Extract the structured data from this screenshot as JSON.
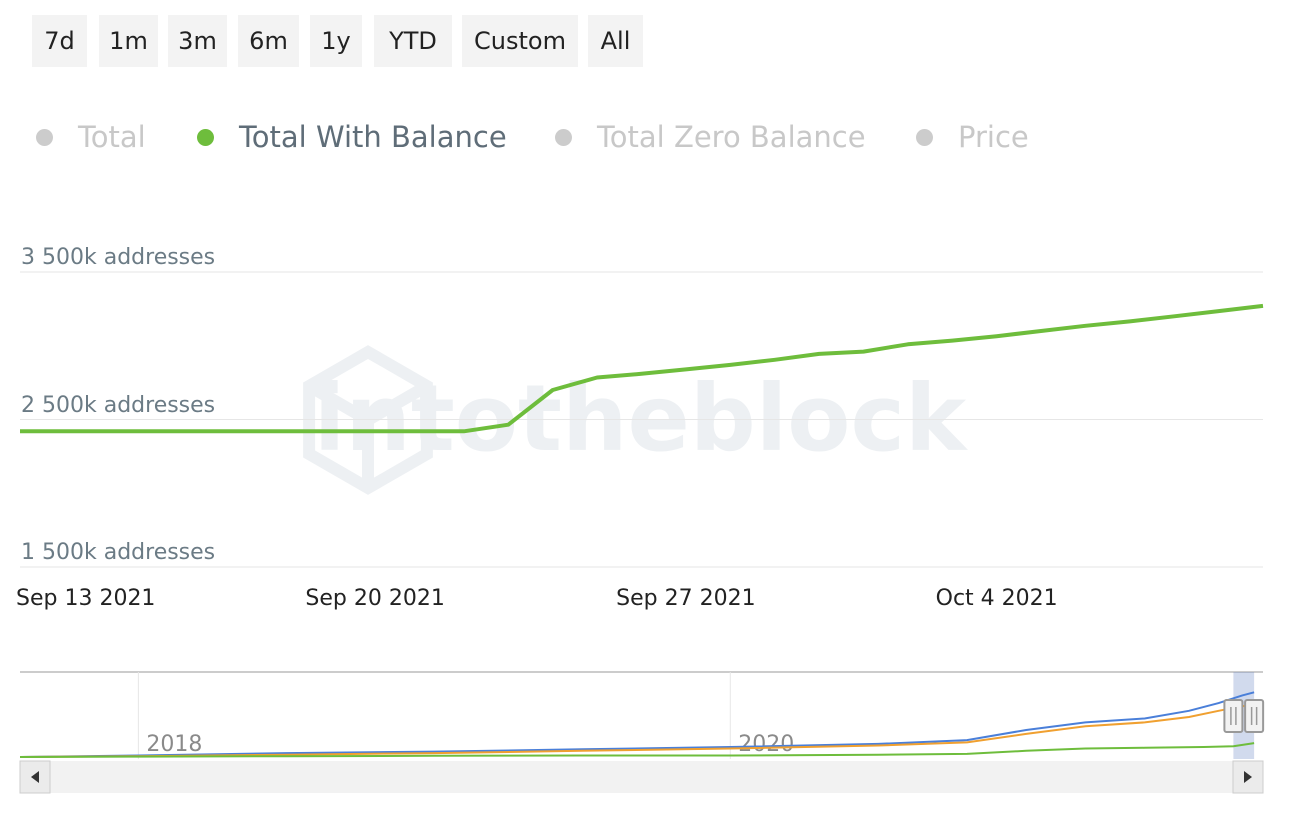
{
  "range_buttons": [
    "7d",
    "1m",
    "3m",
    "6m",
    "1y",
    "YTD",
    "Custom",
    "All"
  ],
  "legend": [
    {
      "label": "Total",
      "active": false,
      "color": "#cccccc"
    },
    {
      "label": "Total With Balance",
      "active": true,
      "color": "#6ebd3c"
    },
    {
      "label": "Total Zero Balance",
      "active": false,
      "color": "#cccccc"
    },
    {
      "label": "Price",
      "active": false,
      "color": "#cccccc"
    }
  ],
  "watermark": "intotheblock",
  "chart_data": [
    {
      "type": "line",
      "y_unit": "addresses",
      "y_ticks": [
        {
          "value": 1500,
          "label": "1 500k addresses"
        },
        {
          "value": 2500,
          "label": "2 500k addresses"
        },
        {
          "value": 3500,
          "label": "3 500k addresses"
        }
      ],
      "x_ticks": [
        {
          "value": "2021-09-13",
          "label": "Sep 13 2021"
        },
        {
          "value": "2021-09-20",
          "label": "Sep 20 2021"
        },
        {
          "value": "2021-09-27",
          "label": "Sep 27 2021"
        },
        {
          "value": "2021-10-04",
          "label": "Oct 4 2021"
        }
      ],
      "ylim": [
        1500,
        3500
      ],
      "xlim": [
        "2021-09-12",
        "2021-10-10"
      ],
      "grid": true,
      "series": [
        {
          "name": "Total With Balance",
          "color": "#6ebd3c",
          "points": [
            {
              "x": "2021-09-12",
              "y": 2420
            },
            {
              "x": "2021-09-15",
              "y": 2420
            },
            {
              "x": "2021-09-18",
              "y": 2420
            },
            {
              "x": "2021-09-21",
              "y": 2420
            },
            {
              "x": "2021-09-22",
              "y": 2420
            },
            {
              "x": "2021-09-23",
              "y": 2465
            },
            {
              "x": "2021-09-24",
              "y": 2700
            },
            {
              "x": "2021-09-25",
              "y": 2785
            },
            {
              "x": "2021-09-26",
              "y": 2810
            },
            {
              "x": "2021-09-27",
              "y": 2840
            },
            {
              "x": "2021-09-28",
              "y": 2870
            },
            {
              "x": "2021-09-29",
              "y": 2905
            },
            {
              "x": "2021-09-30",
              "y": 2945
            },
            {
              "x": "2021-10-01",
              "y": 2960
            },
            {
              "x": "2021-10-02",
              "y": 3010
            },
            {
              "x": "2021-10-03",
              "y": 3035
            },
            {
              "x": "2021-10-04",
              "y": 3065
            },
            {
              "x": "2021-10-05",
              "y": 3100
            },
            {
              "x": "2021-10-06",
              "y": 3135
            },
            {
              "x": "2021-10-07",
              "y": 3165
            },
            {
              "x": "2021-10-08",
              "y": 3200
            },
            {
              "x": "2021-10-09",
              "y": 3235
            },
            {
              "x": "2021-10-10",
              "y": 3270
            }
          ]
        }
      ]
    },
    {
      "type": "line",
      "role": "navigator",
      "x_ticks": [
        {
          "value": "2018",
          "label": "2018"
        },
        {
          "value": "2020",
          "label": "2020"
        }
      ],
      "xlim": [
        2017.6,
        2021.8
      ],
      "ylim": [
        0,
        100
      ],
      "grid": true,
      "selection": [
        2021.7,
        2021.77
      ],
      "series": [
        {
          "color": "#4a7fd9",
          "points": [
            {
              "x": 2017.6,
              "y": 0
            },
            {
              "x": 2018.0,
              "y": 2
            },
            {
              "x": 2018.5,
              "y": 5
            },
            {
              "x": 2019.0,
              "y": 7
            },
            {
              "x": 2019.5,
              "y": 10
            },
            {
              "x": 2020.0,
              "y": 13
            },
            {
              "x": 2020.5,
              "y": 17
            },
            {
              "x": 2020.8,
              "y": 22
            },
            {
              "x": 2021.0,
              "y": 35
            },
            {
              "x": 2021.2,
              "y": 45
            },
            {
              "x": 2021.4,
              "y": 50
            },
            {
              "x": 2021.55,
              "y": 60
            },
            {
              "x": 2021.65,
              "y": 70
            },
            {
              "x": 2021.73,
              "y": 80
            },
            {
              "x": 2021.77,
              "y": 84
            }
          ]
        },
        {
          "color": "#f0a030",
          "points": [
            {
              "x": 2017.6,
              "y": 0
            },
            {
              "x": 2018.0,
              "y": 1
            },
            {
              "x": 2018.5,
              "y": 3
            },
            {
              "x": 2019.0,
              "y": 5
            },
            {
              "x": 2019.5,
              "y": 8
            },
            {
              "x": 2020.0,
              "y": 11
            },
            {
              "x": 2020.5,
              "y": 15
            },
            {
              "x": 2020.8,
              "y": 19
            },
            {
              "x": 2021.0,
              "y": 30
            },
            {
              "x": 2021.2,
              "y": 40
            },
            {
              "x": 2021.4,
              "y": 45
            },
            {
              "x": 2021.55,
              "y": 52
            },
            {
              "x": 2021.65,
              "y": 60
            },
            {
              "x": 2021.73,
              "y": 66
            },
            {
              "x": 2021.77,
              "y": 68
            }
          ]
        },
        {
          "color": "#6ebd3c",
          "points": [
            {
              "x": 2017.6,
              "y": 0
            },
            {
              "x": 2018.0,
              "y": 0.5
            },
            {
              "x": 2018.5,
              "y": 1
            },
            {
              "x": 2019.0,
              "y": 1.5
            },
            {
              "x": 2019.5,
              "y": 2
            },
            {
              "x": 2020.0,
              "y": 2
            },
            {
              "x": 2020.5,
              "y": 3
            },
            {
              "x": 2020.8,
              "y": 4
            },
            {
              "x": 2021.0,
              "y": 8
            },
            {
              "x": 2021.2,
              "y": 11
            },
            {
              "x": 2021.4,
              "y": 12
            },
            {
              "x": 2021.6,
              "y": 13
            },
            {
              "x": 2021.7,
              "y": 14
            },
            {
              "x": 2021.77,
              "y": 18
            }
          ]
        }
      ]
    }
  ]
}
